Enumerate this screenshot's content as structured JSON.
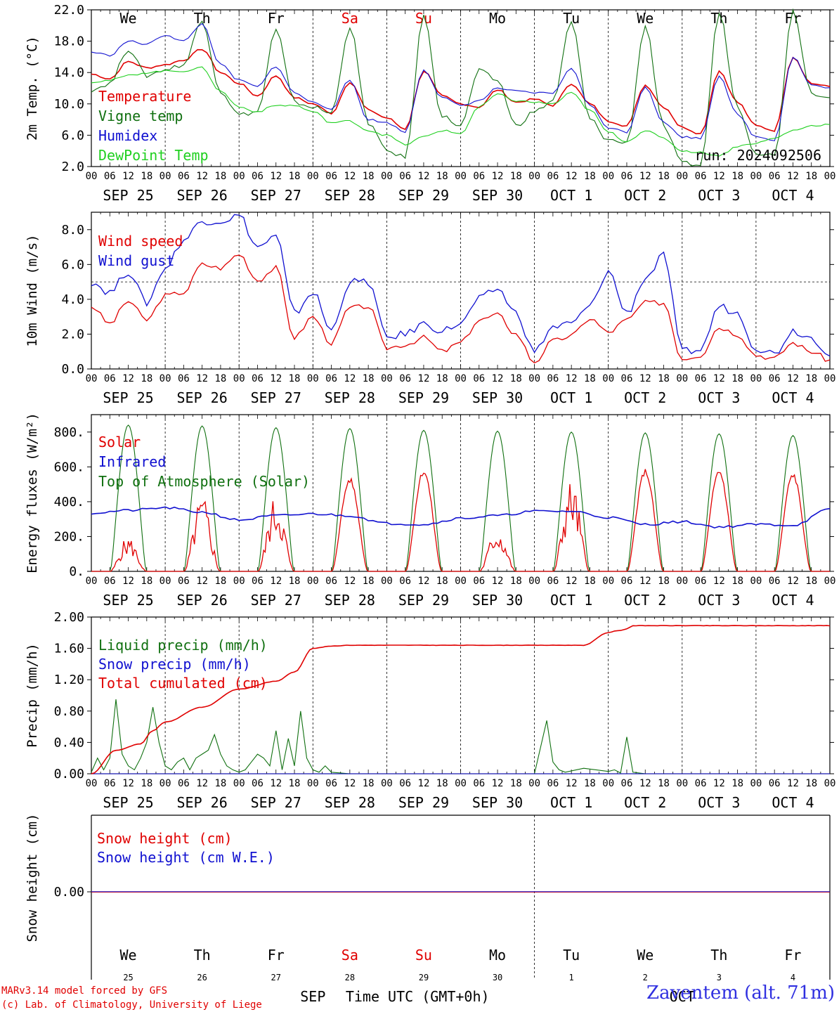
{
  "footer": {
    "credit_line1": "MARv3.14 model forced by GFS",
    "credit_line2": "(c) Lab. of Climatology, University of Liege",
    "station": "Zaventem (alt. 71m)"
  },
  "chart_data": [
    {
      "type": "line",
      "ylabel": "2m Temp. (°C)",
      "ylim": [
        2.0,
        22.0
      ],
      "yticks": [
        "2.0",
        "6.0",
        "10.0",
        "14.0",
        "18.0",
        "22.0"
      ],
      "xlabel_hours": [
        "00",
        "06",
        "12",
        "18"
      ],
      "day_labels": [
        "SEP 25",
        "SEP 26",
        "SEP 27",
        "SEP 28",
        "SEP 29",
        "SEP 30",
        "OCT  1",
        "OCT  2",
        "OCT  3",
        "OCT  4"
      ],
      "weekday_labels": [
        "We",
        "Th",
        "Fr",
        "Sa",
        "Su",
        "Mo",
        "Tu",
        "We",
        "Th",
        "Fr"
      ],
      "weekday_colors": [
        "#000000",
        "#000000",
        "#000000",
        "#e00000",
        "#e00000",
        "#000000",
        "#000000",
        "#000000",
        "#000000",
        "#000000"
      ],
      "annotation": "run: 2024092506",
      "legend_position": "top-left",
      "x_hours": [
        0,
        6,
        12,
        18,
        24,
        30,
        36,
        42,
        48,
        54,
        60,
        66,
        72,
        78,
        84,
        90,
        96,
        102,
        108,
        114,
        120,
        126,
        132,
        138,
        144,
        150,
        156,
        162,
        168,
        174,
        180,
        186,
        192,
        198,
        204,
        210,
        216,
        222,
        228,
        234,
        240
      ],
      "series": [
        {
          "name": "Temperature",
          "color": "#e00000",
          "values": [
            13.8,
            13.2,
            15.4,
            14.6,
            15.0,
            15.6,
            17.0,
            14.0,
            12.6,
            11.0,
            13.6,
            10.8,
            10.0,
            8.8,
            12.8,
            9.2,
            8.2,
            6.8,
            14.2,
            11.0,
            10.0,
            9.6,
            11.8,
            10.2,
            10.6,
            9.8,
            12.6,
            10.0,
            7.8,
            7.2,
            12.4,
            9.6,
            7.0,
            6.2,
            14.2,
            10.2,
            7.2,
            6.6,
            16.0,
            12.6,
            12.2
          ]
        },
        {
          "name": "Vigne temp",
          "color": "#107010",
          "values": [
            11.8,
            12.6,
            17.0,
            13.6,
            14.4,
            15.0,
            20.6,
            11.6,
            8.6,
            9.0,
            19.4,
            10.2,
            9.6,
            8.8,
            19.8,
            7.6,
            4.0,
            3.2,
            21.2,
            8.4,
            7.2,
            14.2,
            13.0,
            7.2,
            9.0,
            10.4,
            20.4,
            8.0,
            5.4,
            5.0,
            20.0,
            7.0,
            2.4,
            2.2,
            21.6,
            9.6,
            3.8,
            3.4,
            22.0,
            11.4,
            11.0
          ]
        },
        {
          "name": "Humidex",
          "color": "#1010d0",
          "values": [
            16.6,
            16.2,
            18.0,
            17.6,
            18.8,
            18.0,
            20.2,
            15.0,
            13.0,
            12.2,
            14.8,
            11.4,
            10.2,
            9.4,
            13.0,
            8.0,
            7.6,
            6.4,
            14.4,
            10.8,
            9.8,
            10.4,
            12.0,
            11.6,
            11.4,
            11.4,
            14.6,
            9.8,
            7.0,
            6.4,
            12.2,
            7.6,
            5.8,
            5.6,
            13.6,
            8.6,
            5.8,
            5.4,
            16.0,
            12.4,
            12.0
          ]
        },
        {
          "name": "DewPoint Temp",
          "color": "#20d020",
          "values": [
            12.8,
            13.0,
            13.6,
            14.0,
            14.2,
            14.2,
            14.6,
            11.6,
            9.6,
            9.0,
            9.8,
            9.8,
            9.0,
            7.6,
            7.8,
            6.6,
            6.0,
            4.8,
            5.8,
            6.6,
            6.2,
            9.6,
            11.2,
            10.4,
            10.2,
            10.0,
            11.4,
            9.2,
            6.4,
            5.2,
            6.6,
            5.6,
            4.0,
            3.8,
            3.4,
            4.6,
            5.0,
            5.6,
            6.6,
            7.2,
            7.4
          ]
        }
      ]
    },
    {
      "type": "line",
      "ylabel": "10m Wind (m/s)",
      "ylim": [
        0.0,
        9.0
      ],
      "yticks": [
        "0.0",
        "2.0",
        "4.0",
        "6.0",
        "8.0"
      ],
      "reference_line": 5.0,
      "xlabel_hours": [
        "00",
        "06",
        "12",
        "18"
      ],
      "day_labels": [
        "SEP 25",
        "SEP 26",
        "SEP 27",
        "SEP 28",
        "SEP 29",
        "SEP 30",
        "OCT  1",
        "OCT  2",
        "OCT  3",
        "OCT  4"
      ],
      "legend_position": "top-left",
      "x_hours": [
        0,
        6,
        12,
        18,
        24,
        30,
        36,
        42,
        48,
        54,
        60,
        66,
        72,
        78,
        84,
        90,
        96,
        102,
        108,
        114,
        120,
        126,
        132,
        138,
        144,
        150,
        156,
        162,
        168,
        174,
        180,
        186,
        192,
        198,
        204,
        210,
        216,
        222,
        228,
        234,
        240
      ],
      "series": [
        {
          "name": "Wind speed",
          "color": "#e00000",
          "values": [
            3.6,
            2.6,
            3.9,
            2.8,
            4.2,
            4.4,
            6.0,
            5.8,
            6.6,
            5.1,
            5.8,
            1.8,
            3.0,
            1.5,
            3.5,
            3.6,
            1.2,
            1.4,
            1.8,
            1.0,
            1.5,
            2.8,
            3.1,
            2.0,
            0.4,
            1.6,
            1.9,
            2.9,
            2.1,
            2.8,
            3.8,
            3.8,
            0.6,
            0.8,
            2.4,
            2.0,
            0.8,
            0.6,
            1.5,
            1.0,
            0.5
          ]
        },
        {
          "name": "Wind gust",
          "color": "#1010d0",
          "values": [
            5.0,
            4.4,
            5.6,
            3.8,
            5.8,
            7.4,
            8.5,
            8.5,
            8.8,
            7.0,
            7.6,
            3.2,
            4.4,
            2.2,
            5.0,
            5.0,
            1.8,
            2.0,
            2.6,
            2.2,
            2.6,
            4.0,
            4.6,
            3.2,
            1.0,
            2.4,
            2.6,
            3.6,
            5.6,
            3.2,
            5.2,
            6.5,
            1.0,
            1.1,
            3.6,
            3.2,
            1.2,
            0.9,
            2.2,
            1.8,
            0.9
          ]
        }
      ]
    },
    {
      "type": "line",
      "ylabel": "Energy fluxes (W/m²)",
      "ylim": [
        0,
        900
      ],
      "yticks": [
        "0.",
        "200.",
        "400.",
        "600.",
        "800."
      ],
      "xlabel_hours": [
        "00",
        "06",
        "12",
        "18"
      ],
      "day_labels": [
        "SEP 25",
        "SEP 26",
        "SEP 27",
        "SEP 28",
        "SEP 29",
        "SEP 30",
        "OCT  1",
        "OCT  2",
        "OCT  3",
        "OCT  4"
      ],
      "legend_position": "top-left",
      "toa_peaks": [
        840,
        835,
        825,
        820,
        810,
        805,
        800,
        795,
        790,
        780
      ],
      "solar_peaks": [
        200,
        440,
        440,
        540,
        590,
        260,
        530,
        590,
        590,
        570
      ],
      "x_hours": [
        0,
        12,
        24,
        36,
        48,
        60,
        72,
        84,
        96,
        108,
        120,
        132,
        144,
        156,
        168,
        180,
        192,
        204,
        216,
        228,
        240
      ],
      "series": [
        {
          "name": "Solar",
          "color": "#e00000",
          "values": []
        },
        {
          "name": "Infrared",
          "color": "#1010d0",
          "values": [
            335,
            350,
            365,
            340,
            295,
            320,
            330,
            320,
            275,
            270,
            305,
            320,
            345,
            345,
            310,
            270,
            285,
            255,
            270,
            265,
            355
          ]
        },
        {
          "name": "Top of Atmosphere (Solar)",
          "color": "#107010",
          "values": []
        }
      ]
    },
    {
      "type": "line",
      "ylabel": "Precip (mm/h)",
      "ylim": [
        0.0,
        2.0
      ],
      "yticks": [
        "0.00",
        "0.40",
        "0.80",
        "1.20",
        "1.60",
        "2.00"
      ],
      "xlabel_hours": [
        "00",
        "06",
        "12",
        "18"
      ],
      "day_labels": [
        "SEP 25",
        "SEP 26",
        "SEP 27",
        "SEP 28",
        "SEP 29",
        "SEP 30",
        "OCT  1",
        "OCT  2",
        "OCT  3",
        "OCT  4"
      ],
      "legend_position": "top-left",
      "series": [
        {
          "name": "Liquid precip (mm/h)",
          "color": "#107010",
          "x_hours": [
            0,
            2,
            4,
            6,
            8,
            10,
            12,
            14,
            16,
            18,
            20,
            22,
            24,
            26,
            28,
            30,
            32,
            34,
            36,
            38,
            40,
            42,
            44,
            46,
            48,
            50,
            52,
            54,
            56,
            58,
            60,
            62,
            64,
            66,
            68,
            70,
            72,
            74,
            76,
            78,
            84,
            90,
            96,
            144,
            148,
            150,
            152,
            154,
            160,
            168,
            170,
            172,
            174,
            176,
            180,
            240
          ],
          "values": [
            0.02,
            0.2,
            0.05,
            0.2,
            0.95,
            0.25,
            0.1,
            0.05,
            0.2,
            0.4,
            0.85,
            0.4,
            0.1,
            0.05,
            0.15,
            0.2,
            0.05,
            0.2,
            0.25,
            0.3,
            0.5,
            0.25,
            0.1,
            0.05,
            0.02,
            0.05,
            0.15,
            0.25,
            0.2,
            0.1,
            0.55,
            0.05,
            0.45,
            0.1,
            0.8,
            0.2,
            0.05,
            0.02,
            0.1,
            0.02,
            0.0,
            0.0,
            0.0,
            0.0,
            0.68,
            0.15,
            0.05,
            0.02,
            0.07,
            0.03,
            0.05,
            0.01,
            0.47,
            0.02,
            0.0,
            0.0
          ]
        },
        {
          "name": "Snow precip (mm/h)",
          "color": "#1010d0",
          "x_hours": [
            0,
            240
          ],
          "values": [
            0.0,
            0.0
          ]
        },
        {
          "name": "Total cumulated (cm)",
          "color": "#e00000",
          "x_hours": [
            0,
            8,
            16,
            20,
            24,
            36,
            48,
            60,
            66,
            72,
            78,
            84,
            96,
            120,
            132,
            138,
            144,
            160,
            168,
            170,
            172,
            174,
            176,
            240
          ],
          "values": [
            0.0,
            0.3,
            0.38,
            0.55,
            0.66,
            0.85,
            1.08,
            1.18,
            1.3,
            1.6,
            1.63,
            1.64,
            1.64,
            1.64,
            1.64,
            1.64,
            1.64,
            1.64,
            1.8,
            1.82,
            1.83,
            1.85,
            1.89,
            1.89
          ]
        }
      ]
    },
    {
      "type": "line",
      "ylabel": "Snow height (cm)",
      "ylim": [
        -1.0,
        1.0
      ],
      "yticks": [
        "0.00"
      ],
      "xlabel": "Time UTC (GMT+0h)",
      "month_labels": [
        "SEP",
        "OCT"
      ],
      "weekday_labels": [
        "We",
        "Th",
        "Fr",
        "Sa",
        "Su",
        "Mo",
        "Tu",
        "We",
        "Th",
        "Fr"
      ],
      "weekday_colors": [
        "#000000",
        "#000000",
        "#000000",
        "#e00000",
        "#e00000",
        "#000000",
        "#000000",
        "#000000",
        "#000000",
        "#000000"
      ],
      "day_numbers": [
        "25",
        "26",
        "27",
        "28",
        "29",
        "30",
        "1",
        "2",
        "3",
        "4"
      ],
      "legend_position": "top-left",
      "x_hours": [
        0,
        240
      ],
      "series": [
        {
          "name": "Snow height (cm)",
          "color": "#e00000",
          "values": [
            0.0,
            0.0
          ]
        },
        {
          "name": "Snow height (cm W.E.)",
          "color": "#1010d0",
          "values": [
            0.0,
            0.0
          ]
        }
      ]
    }
  ]
}
